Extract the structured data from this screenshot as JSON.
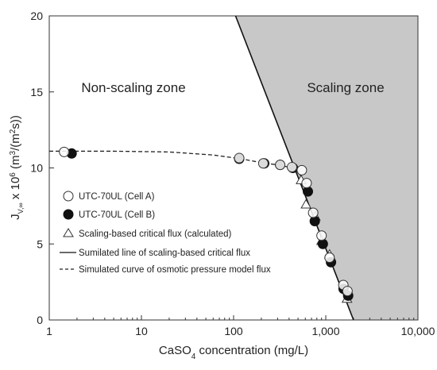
{
  "chart_data": {
    "type": "scatter",
    "title": "",
    "x_axis": {
      "label_base": "CaSO",
      "label_sub": "4",
      "label_rest": " concentration (mg/L)",
      "scale": "log",
      "range": [
        1,
        10000
      ],
      "ticks": [
        1,
        10,
        100,
        1000,
        10000
      ],
      "tick_labels": [
        "1",
        "10",
        "100",
        "1,000",
        "10,000"
      ]
    },
    "y_axis": {
      "label_j": "J",
      "label_sub": "V,∞",
      "label_x": " x 10",
      "label_sup": "6",
      "label_units_a": " (m",
      "label_units_sup1": "3",
      "label_units_b": "/(m",
      "label_units_sup2": "2",
      "label_units_c": "s))",
      "scale": "linear",
      "range": [
        0,
        20
      ],
      "ticks": [
        0,
        5,
        10,
        15,
        20
      ],
      "tick_labels": [
        "0",
        "5",
        "10",
        "15",
        "20"
      ]
    },
    "grid": false,
    "zones": {
      "non_scaling": "Non-scaling zone",
      "scaling": "Scaling zone",
      "boundary_top": [
        105,
        20
      ],
      "boundary_bottom": [
        2000,
        0
      ],
      "shade_color": "#c8c8c8"
    },
    "series": [
      {
        "name": "UTC-70UL (Cell A)",
        "marker": "open-circle",
        "points": [
          [
            1.45,
            11.05
          ],
          [
            115,
            10.65
          ],
          [
            210,
            10.3
          ],
          [
            320,
            10.2
          ],
          [
            430,
            10.05
          ],
          [
            550,
            9.85
          ],
          [
            620,
            9.0
          ],
          [
            730,
            7.05
          ],
          [
            900,
            5.55
          ],
          [
            1100,
            4.1
          ],
          [
            1550,
            2.3
          ],
          [
            1720,
            1.9
          ]
        ]
      },
      {
        "name": "UTC-70UL (Cell B)",
        "marker": "filled-circle",
        "points": [
          [
            1.75,
            10.95
          ],
          [
            115,
            10.6
          ],
          [
            215,
            10.3
          ],
          [
            320,
            10.2
          ],
          [
            440,
            10.0
          ],
          [
            640,
            8.45
          ],
          [
            760,
            6.5
          ],
          [
            930,
            5.0
          ],
          [
            1140,
            3.8
          ],
          [
            1560,
            2.05
          ],
          [
            1750,
            1.6
          ]
        ]
      },
      {
        "name": "Scaling-based critical flux (calculated)",
        "marker": "open-triangle",
        "points": [
          [
            540,
            9.2
          ],
          [
            610,
            7.6
          ],
          [
            770,
            6.8
          ],
          [
            900,
            5.2
          ],
          [
            1100,
            4.3
          ],
          [
            1700,
            1.4
          ]
        ]
      },
      {
        "name": "Sumilated line of scaling-based critical flux",
        "style": "solid-line",
        "points": [
          [
            105,
            20
          ],
          [
            2000,
            0
          ]
        ]
      },
      {
        "name": "Simulated curve of osmotic pressure model flux",
        "style": "dashed-line",
        "points": [
          [
            1.0,
            11.1
          ],
          [
            5,
            11.1
          ],
          [
            20,
            11.05
          ],
          [
            60,
            10.85
          ],
          [
            120,
            10.6
          ],
          [
            200,
            10.35
          ],
          [
            300,
            10.2
          ],
          [
            400,
            10.05
          ],
          [
            500,
            9.75
          ],
          [
            560,
            9.3
          ]
        ]
      }
    ],
    "legend_placement": "left-lower"
  }
}
